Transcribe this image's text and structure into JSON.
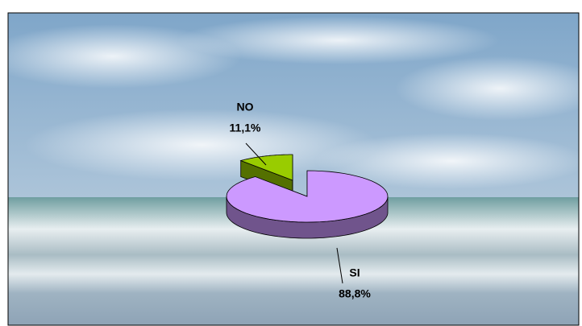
{
  "chart_data": {
    "type": "pie",
    "categories": [
      "SI",
      "NO"
    ],
    "values": [
      88.8,
      11.1
    ],
    "value_labels": [
      "88,8%",
      "11,1%"
    ],
    "colors": [
      "#CC99FF",
      "#99CC00"
    ]
  }
}
